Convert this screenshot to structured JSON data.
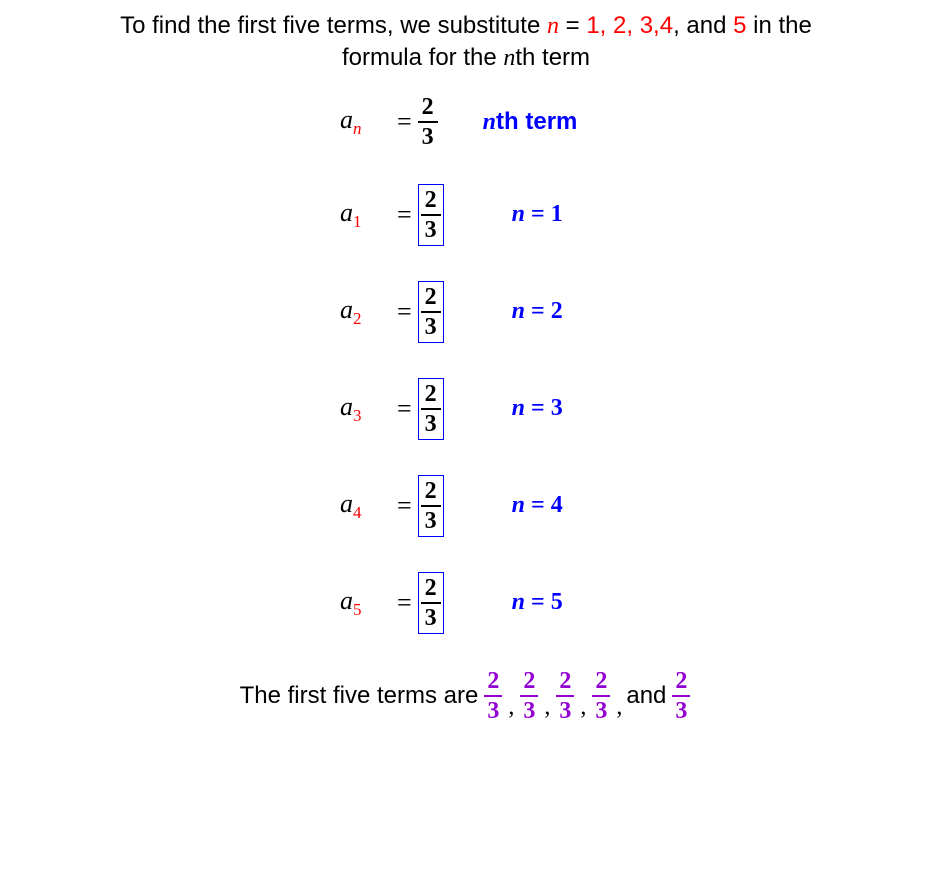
{
  "intro": {
    "part1": "To find the first five terms, we substitute ",
    "n_var": "n",
    "eq": " = ",
    "vals": "1, 2, 3,4",
    "part2": ", and ",
    "val5": "5",
    "part3": " in the",
    "line2a": "formula for the ",
    "line2b": "n",
    "line2c": "th term"
  },
  "general": {
    "a": "a",
    "sub": "n",
    "eq": "=",
    "num": "2",
    "den": "3",
    "label_n": "n",
    "label_text": "th term"
  },
  "terms": [
    {
      "a": "a",
      "sub": "1",
      "eq": "=",
      "num": "2",
      "den": "3",
      "lab_n": "n",
      "lab_eq": " = ",
      "lab_v": "1"
    },
    {
      "a": "a",
      "sub": "2",
      "eq": "=",
      "num": "2",
      "den": "3",
      "lab_n": "n",
      "lab_eq": " = ",
      "lab_v": "2"
    },
    {
      "a": "a",
      "sub": "3",
      "eq": "=",
      "num": "2",
      "den": "3",
      "lab_n": "n",
      "lab_eq": " = ",
      "lab_v": "3"
    },
    {
      "a": "a",
      "sub": "4",
      "eq": "=",
      "num": "2",
      "den": "3",
      "lab_n": "n",
      "lab_eq": " = ",
      "lab_v": "4"
    },
    {
      "a": "a",
      "sub": "5",
      "eq": "=",
      "num": "2",
      "den": "3",
      "lab_n": "n",
      "lab_eq": " = ",
      "lab_v": "5"
    }
  ],
  "conclusion": {
    "text1": "The first five terms are ",
    "fracs": [
      {
        "num": "2",
        "den": "3"
      },
      {
        "num": "2",
        "den": "3"
      },
      {
        "num": "2",
        "den": "3"
      },
      {
        "num": "2",
        "den": "3"
      },
      {
        "num": "2",
        "den": "3"
      }
    ],
    "comma": ",",
    "and": "and "
  },
  "colors": {
    "red": "#ff0000",
    "blue": "#0000ff",
    "purple": "#9400d3",
    "black": "#000000"
  },
  "typography": {
    "body_fontsize": 24,
    "math_font": "Times New Roman",
    "sans_font": "Segoe UI"
  }
}
